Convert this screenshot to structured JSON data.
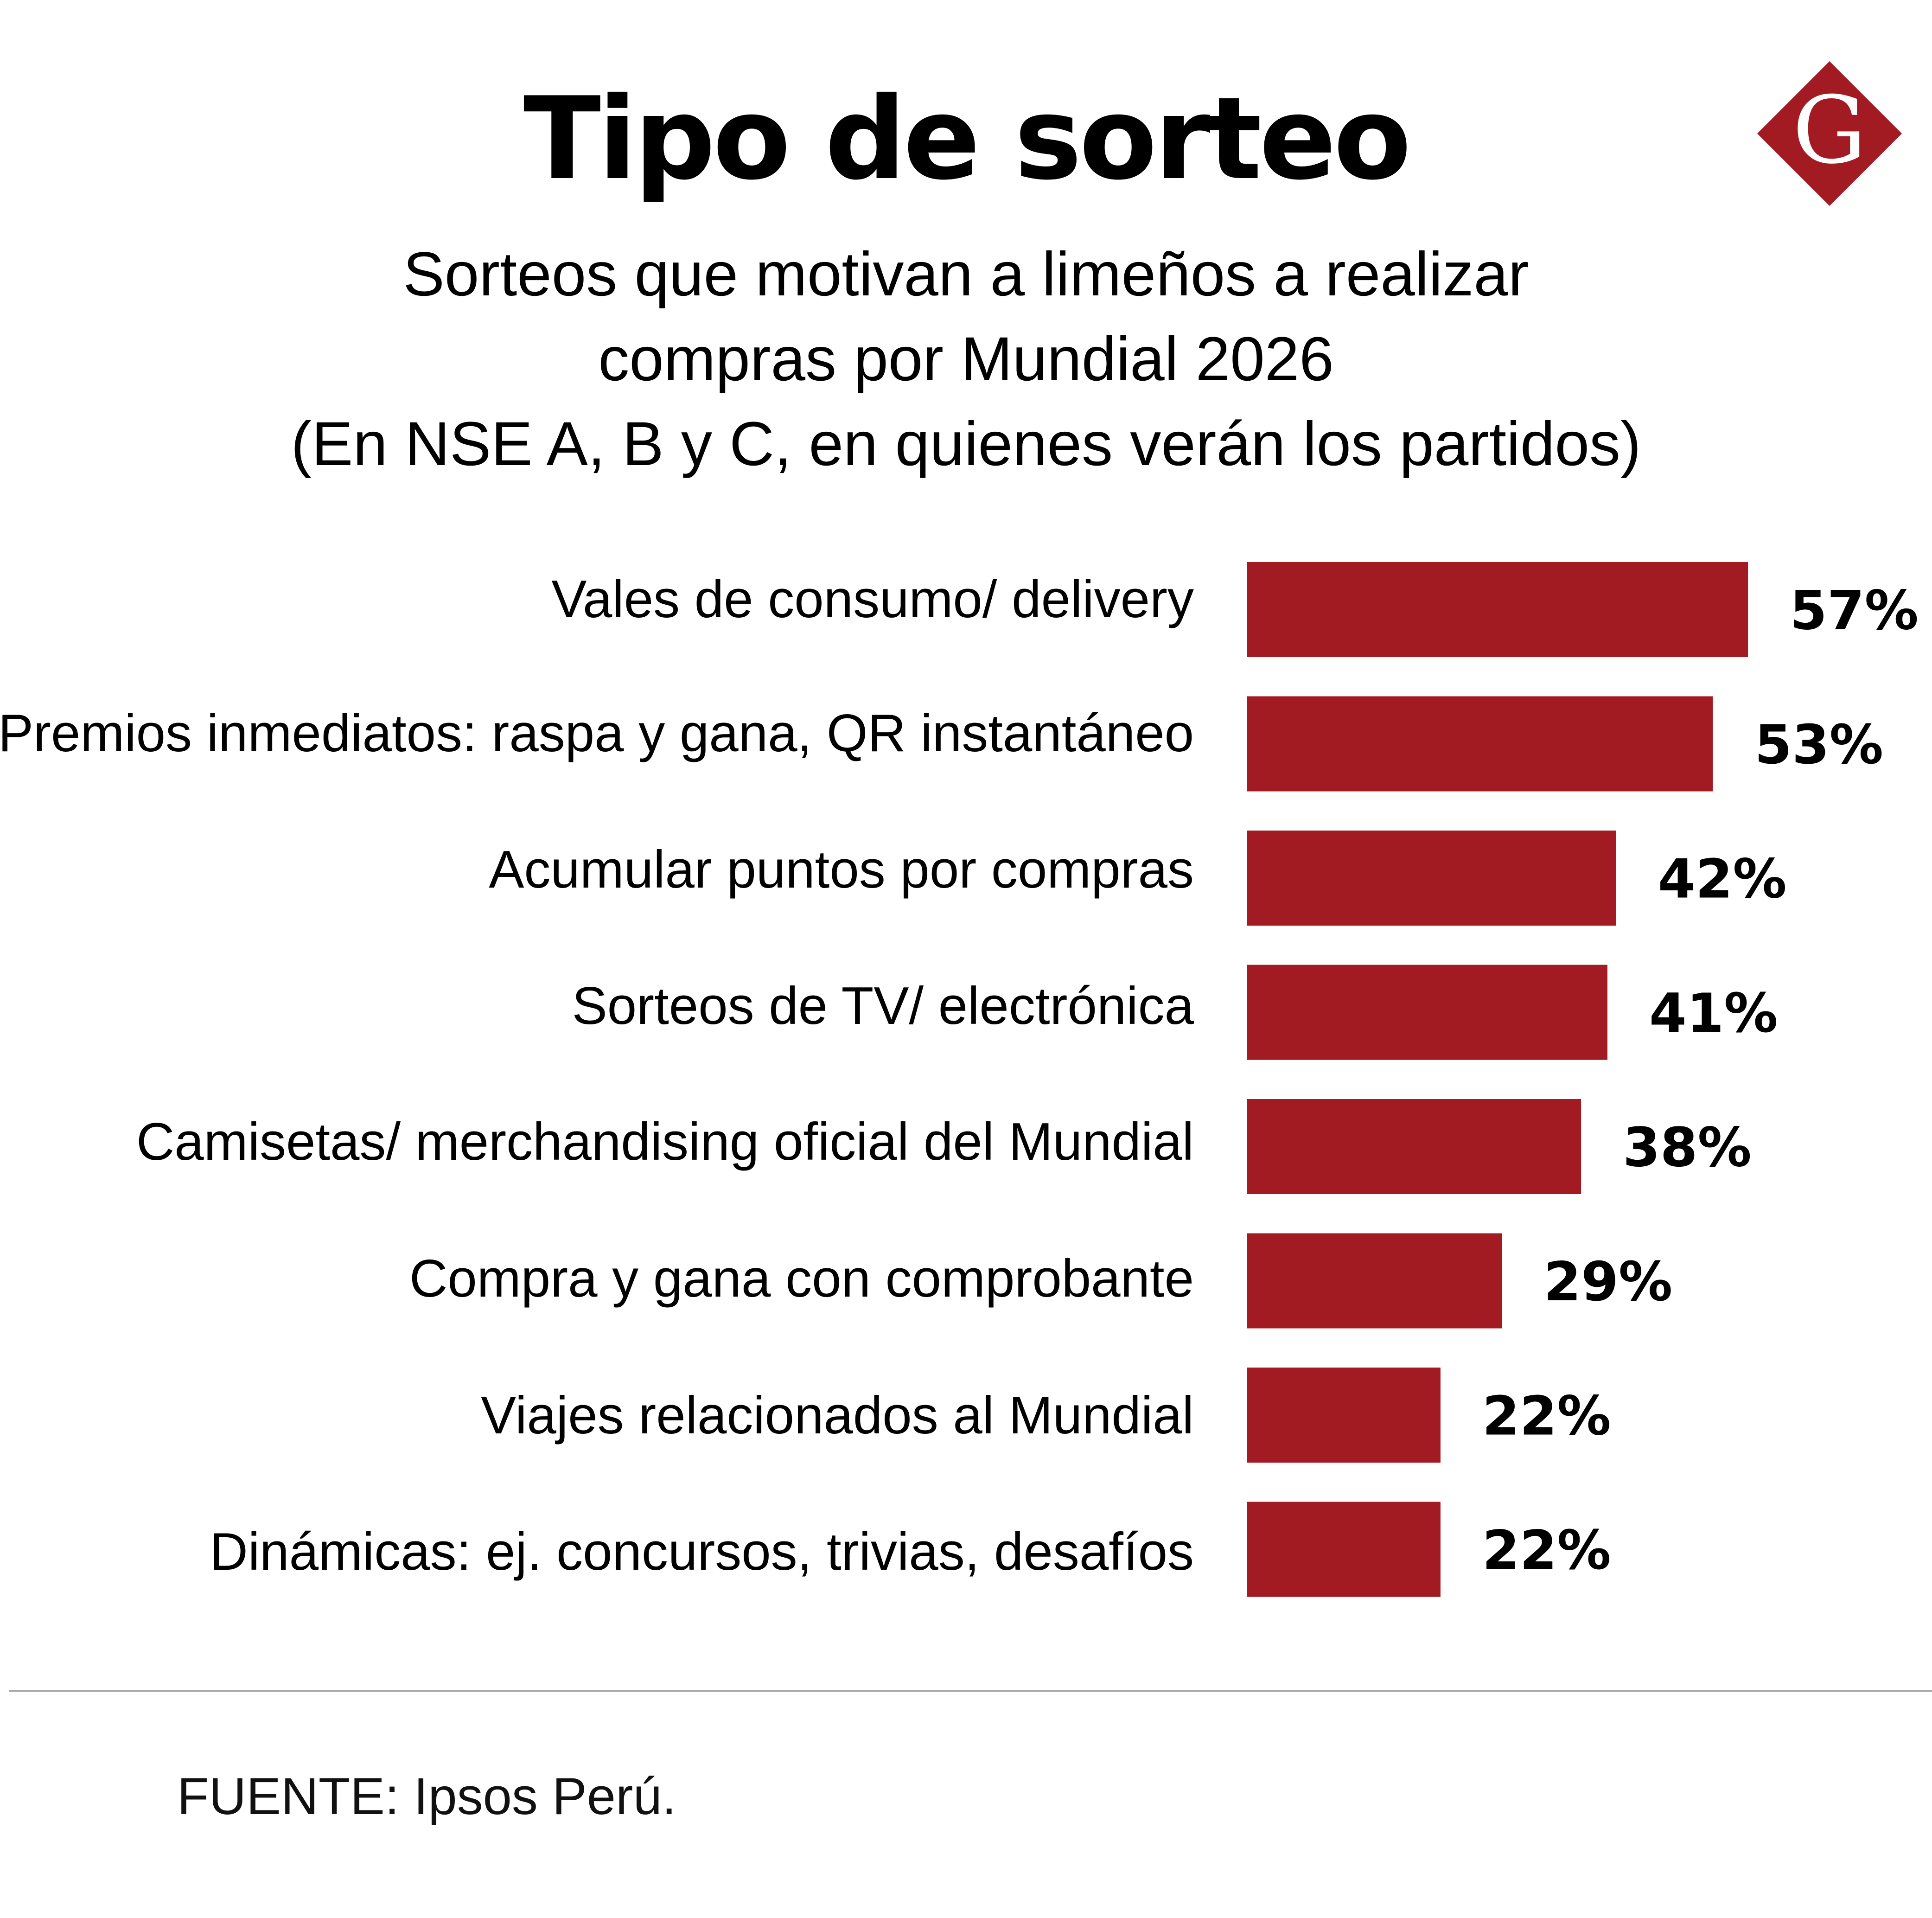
{
  "header": {
    "title": "Tipo de sorteo",
    "subtitle_lines": [
      "Sorteos que motivan a limeños a realizar",
      "compras por Mundial 2026",
      "(En NSE A, B y C, en quienes verán los partidos)"
    ]
  },
  "logo": {
    "letter": "G",
    "icon": "g-diamond-logo",
    "color": "#a31b22"
  },
  "chart_data": {
    "type": "bar",
    "orientation": "horizontal",
    "categories": [
      "Vales de consumo/ delivery",
      "Premios inmediatos: raspa y gana, QR instantáneo",
      "Acumular puntos por compras",
      "Sorteos de TV/ electrónica",
      "Camisetas/ merchandising oficial del Mundial",
      "Compra y gana con comprobante",
      "Viajes relacionados al Mundial",
      "Dinámicas: ej. concursos, trivias, desafíos"
    ],
    "values": [
      57,
      53,
      42,
      41,
      38,
      29,
      22,
      22
    ],
    "value_labels": [
      "57%",
      "53%",
      "42%",
      "41%",
      "38%",
      "29%",
      "22%",
      "22%"
    ],
    "unit": "%",
    "bar_color": "#a31b22",
    "grid": false,
    "legend": false
  },
  "footer": {
    "source": "FUENTE: Ipsos Perú."
  }
}
